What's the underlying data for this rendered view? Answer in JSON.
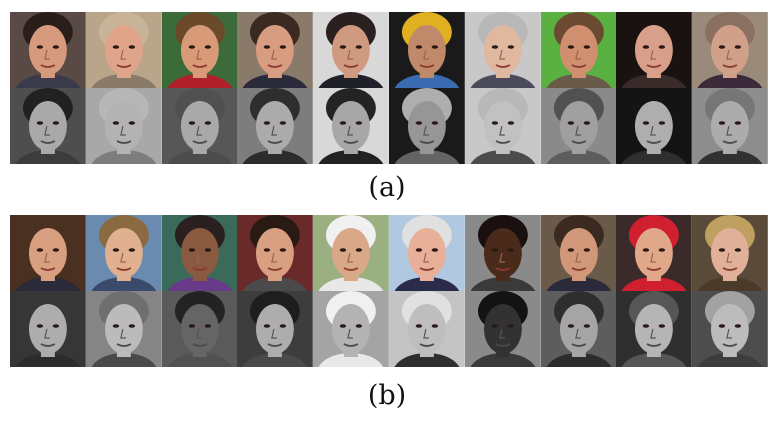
{
  "captions": {
    "a": "(a)",
    "b": "(b)"
  },
  "panel_a": {
    "faces": [
      {
        "subject": "man-dark-hair",
        "bg": "#5a4a45",
        "skin": "#d69a7c",
        "hair": "#2a1e1a",
        "top": "#3a3a4a"
      },
      {
        "subject": "man-balding",
        "bg": "#b9a58a",
        "skin": "#e0a48a",
        "hair": "#c9b49a",
        "top": "#8a7a6a"
      },
      {
        "subject": "woman-shouting",
        "bg": "#3c6b3a",
        "skin": "#d99a78",
        "hair": "#6b4a2a",
        "top": "#b0202a"
      },
      {
        "subject": "man-speaking",
        "bg": "#8a7a6a",
        "skin": "#d89c80",
        "hair": "#3a2a22",
        "top": "#2a2a3a"
      },
      {
        "subject": "man-glasses",
        "bg": "#d8d8d8",
        "skin": "#cf9a80",
        "hair": "#2a2020",
        "top": "#202028"
      },
      {
        "subject": "man-bandana",
        "bg": "#1a1a1a",
        "skin": "#c08a6a",
        "hair": "#e0b020",
        "top": "#3a6ab0"
      },
      {
        "subject": "older-woman",
        "bg": "#c8c8c8",
        "skin": "#e0b8a0",
        "hair": "#b8b8b8",
        "top": "#4a4a5a"
      },
      {
        "subject": "man-beard",
        "bg": "#5ab040",
        "skin": "#d09070",
        "hair": "#6a4a30",
        "top": "#6a5a4a"
      },
      {
        "subject": "woman-dark-hair",
        "bg": "#1a1210",
        "skin": "#d8a08a",
        "hair": "#1a1210",
        "top": "#3a2a2a"
      },
      {
        "subject": "older-woman-curly",
        "bg": "#9a8a7a",
        "skin": "#d0a088",
        "hair": "#8a7060",
        "top": "#3a2a3a"
      }
    ]
  },
  "panel_b": {
    "faces": [
      {
        "subject": "man-suit",
        "bg": "#4a3020",
        "skin": "#d8a080",
        "hair": "#4a3020",
        "top": "#2a2a3a"
      },
      {
        "subject": "man-smiling",
        "bg": "#6a8ab0",
        "skin": "#e0b090",
        "hair": "#8a6a40",
        "top": "#3a4a6a"
      },
      {
        "subject": "older-woman-smile",
        "bg": "#3a6a5a",
        "skin": "#8a5a40",
        "hair": "#2a2020",
        "top": "#6a3a8a"
      },
      {
        "subject": "man-short-hair",
        "bg": "#6a2a2a",
        "skin": "#d8a080",
        "hair": "#2a1a14",
        "top": "#4a4a4a"
      },
      {
        "subject": "man-white-cap",
        "bg": "#9ab080",
        "skin": "#d8a888",
        "hair": "#f0f0f0",
        "top": "#e8e8e8"
      },
      {
        "subject": "older-man-smile",
        "bg": "#b0c8e0",
        "skin": "#e8b098",
        "hair": "#e0e0e0",
        "top": "#2a2a4a"
      },
      {
        "subject": "man-dark-skin",
        "bg": "#8a8a8a",
        "skin": "#4a2a1a",
        "hair": "#1a1010",
        "top": "#3a3a3a"
      },
      {
        "subject": "man-moustache",
        "bg": "#6a5a4a",
        "skin": "#d09878",
        "hair": "#3a2a20",
        "top": "#2a2a3a"
      },
      {
        "subject": "man-red-cap",
        "bg": "#3a2a2a",
        "skin": "#e0a888",
        "hair": "#d02030",
        "top": "#d02030"
      },
      {
        "subject": "woman-blonde",
        "bg": "#5a4a3a",
        "skin": "#e0b098",
        "hair": "#c0a060",
        "top": "#4a3a2a"
      }
    ]
  }
}
